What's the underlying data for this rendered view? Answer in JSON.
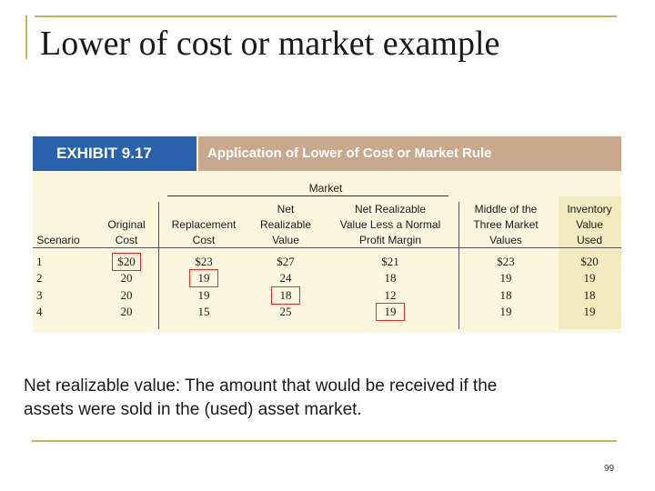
{
  "slide": {
    "title": "Lower of cost or market example",
    "footnote_line1": "Net realizable value: The amount that would be received if the",
    "footnote_line2": " assets were sold in the (used) asset market.",
    "page_number": "99"
  },
  "exhibit": {
    "label": "EXHIBIT 9.17",
    "title": "Application of Lower of Cost or Market Rule",
    "market_label": "Market",
    "columns": [
      {
        "key": "scenario",
        "lines": [
          "Scenario"
        ]
      },
      {
        "key": "original_cost",
        "lines": [
          "Original",
          "Cost"
        ]
      },
      {
        "key": "replacement_cost",
        "lines": [
          "Replacement",
          "Cost"
        ]
      },
      {
        "key": "net_realizable_value",
        "lines": [
          "Net",
          "Realizable",
          "Value"
        ]
      },
      {
        "key": "nrv_less_margin",
        "lines": [
          "Net Realizable",
          "Value Less a Normal",
          "Profit Margin"
        ]
      },
      {
        "key": "middle_value",
        "lines": [
          "Middle of the",
          "Three Market",
          "Values"
        ]
      },
      {
        "key": "inventory_value",
        "lines": [
          "Inventory",
          "Value",
          "Used"
        ]
      }
    ],
    "rows": [
      {
        "scenario": "1",
        "original_cost": "$20",
        "replacement_cost": "$23",
        "net_realizable_value": "$27",
        "nrv_less_margin": "$21",
        "middle_value": "$23",
        "inventory_value": "$20"
      },
      {
        "scenario": "2",
        "original_cost": "20",
        "replacement_cost": "19",
        "net_realizable_value": "24",
        "nrv_less_margin": "18",
        "middle_value": "19",
        "inventory_value": "19"
      },
      {
        "scenario": "3",
        "original_cost": "20",
        "replacement_cost": "19",
        "net_realizable_value": "18",
        "nrv_less_margin": "12",
        "middle_value": "18",
        "inventory_value": "18"
      },
      {
        "scenario": "4",
        "original_cost": "20",
        "replacement_cost": "15",
        "net_realizable_value": "25",
        "nrv_less_margin": "19",
        "middle_value": "19",
        "inventory_value": "19"
      }
    ],
    "highlight_color": "#d9342b"
  }
}
